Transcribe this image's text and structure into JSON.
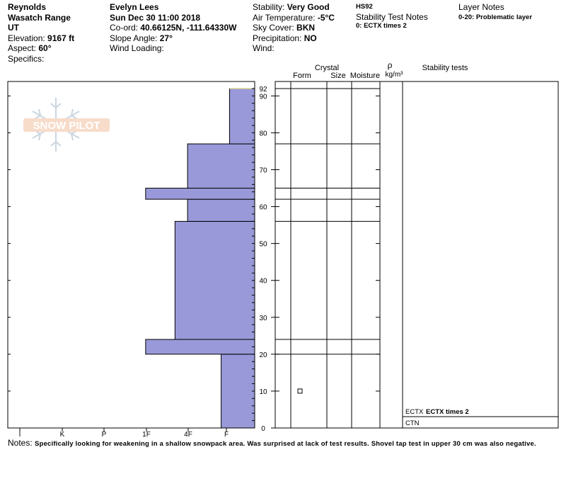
{
  "header": {
    "col1": {
      "line1": "Reynolds",
      "line2": "Wasatch Range",
      "line3": "UT",
      "elevation_label": "Elevation:",
      "elevation_value": "9167 ft",
      "aspect_label": "Aspect:",
      "aspect_value": "60°",
      "specifics_label": "Specifics:"
    },
    "col2": {
      "observer": "Evelyn Lees",
      "datetime": "Sun Dec 30 11:00 2018",
      "coord_label": "Co-ord:",
      "coord_value": "40.66125N, -111.64330W",
      "slope_label": "Slope Angle:",
      "slope_value": "27°",
      "wind_loading_label": "Wind Loading:"
    },
    "col3": {
      "stability_label": "Stability:",
      "stability_value": "Very Good",
      "air_temp_label": "Air Temperature:",
      "air_temp_value": "-5°C",
      "sky_label": "Sky Cover:",
      "sky_value": "BKN",
      "precip_label": "Precipitation:",
      "precip_value": "NO",
      "wind_label": "Wind:"
    },
    "col4": {
      "hs": "HS92",
      "stn_title": "Stability Test Notes",
      "stn_item": "0: ECTX times 2"
    },
    "col5": {
      "title": "Layer Notes",
      "item": "0-20: Problematic layer"
    }
  },
  "columns": {
    "crystal": "Crystal",
    "form": "Form",
    "size": "Size",
    "moisture": "Moisture",
    "rho": "ρ",
    "rho_unit": "kg/m³",
    "stability_tests": "Stability tests"
  },
  "stability_tests": [
    {
      "code": "ECTX",
      "note": "ECTX times 2",
      "height_cm": 2
    },
    {
      "code": "CTN",
      "note": "",
      "height_cm": 0
    }
  ],
  "watermark": "SNOW PILOT",
  "notes": {
    "label": "Notes:",
    "text": "Specifically looking for weakening in a shallow snowpack area. Was surprised at lack of test results. Shovel tap test in upper 30 cm was also negative."
  },
  "chart_data": {
    "type": "bar",
    "subtype": "snow-hardness-profile",
    "hardness_scale": [
      "I",
      "K",
      "P",
      "1F",
      "4F",
      "F"
    ],
    "hardness_axis_order": "I K P 1F 4F F (left to right), bars extend from right edge",
    "height_ticks": [
      0,
      10,
      20,
      30,
      40,
      50,
      60,
      70,
      80,
      90
    ],
    "height_top_label": "92",
    "ylim": [
      0,
      92
    ],
    "layers": [
      {
        "bottom": 0,
        "top": 20,
        "hardness": 0.8
      },
      {
        "bottom": 20,
        "top": 24,
        "hardness": 2.6
      },
      {
        "bottom": 24,
        "top": 56,
        "hardness": 1.9
      },
      {
        "bottom": 56,
        "top": 62,
        "hardness": 1.6
      },
      {
        "bottom": 62,
        "top": 65,
        "hardness": 2.6
      },
      {
        "bottom": 65,
        "top": 77,
        "hardness": 1.6
      },
      {
        "bottom": 77,
        "top": 92,
        "hardness": 0.6
      }
    ],
    "layer_lines_cm": [
      92,
      77,
      65,
      62,
      56,
      24,
      20
    ],
    "grain_markers": [
      {
        "height_cm": 10,
        "symbol": "□"
      }
    ],
    "bar_color": "#9999d9"
  }
}
